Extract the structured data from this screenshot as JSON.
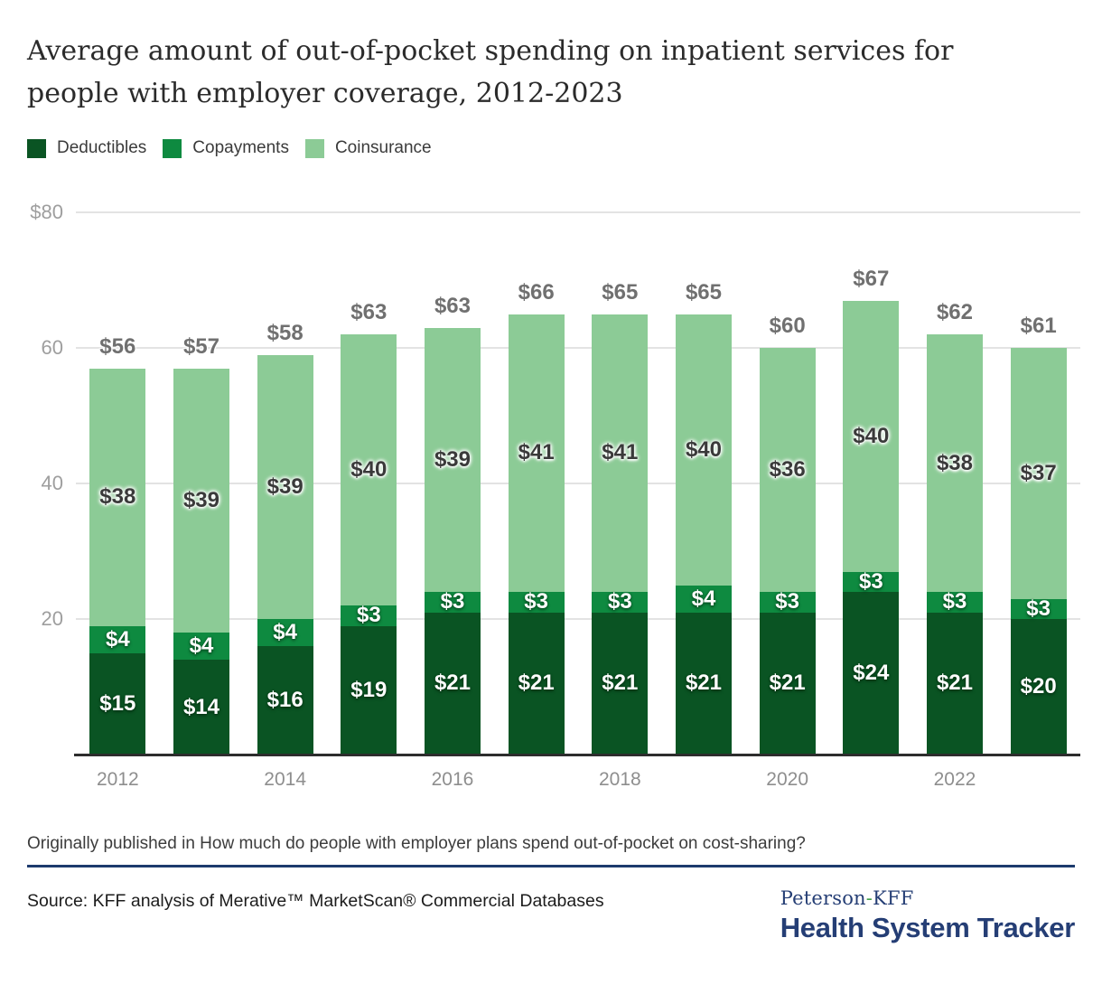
{
  "title_lines": [
    "Average amount of out-of-pocket spending on inpatient services for",
    "people with employer coverage, 2012-2023"
  ],
  "legend": [
    {
      "label": "Deductibles",
      "color": "#0a5423"
    },
    {
      "label": "Copayments",
      "color": "#0e8a40"
    },
    {
      "label": "Coinsurance",
      "color": "#8ccb96"
    }
  ],
  "chart_data": {
    "type": "bar",
    "stacked": true,
    "title": "Average amount of out-of-pocket spending on inpatient services for people with employer coverage, 2012-2023",
    "categories": [
      "2012",
      "2013",
      "2014",
      "2015",
      "2016",
      "2017",
      "2018",
      "2019",
      "2020",
      "2021",
      "2022",
      "2023"
    ],
    "x_tick_labels": [
      "2012",
      "2014",
      "2016",
      "2018",
      "2020",
      "2022"
    ],
    "series": [
      {
        "name": "Deductibles",
        "color": "#0a5423",
        "label_style": "white",
        "values": [
          15,
          14,
          16,
          19,
          21,
          21,
          21,
          21,
          21,
          24,
          21,
          20
        ]
      },
      {
        "name": "Copayments",
        "color": "#0e8a40",
        "label_style": "white",
        "values": [
          4,
          4,
          4,
          3,
          3,
          3,
          3,
          4,
          3,
          3,
          3,
          3
        ]
      },
      {
        "name": "Coinsurance",
        "color": "#8ccb96",
        "label_style": "dark",
        "values": [
          38,
          39,
          39,
          40,
          39,
          41,
          41,
          40,
          36,
          40,
          38,
          37
        ]
      }
    ],
    "totals": [
      56,
      57,
      58,
      63,
      63,
      66,
      65,
      65,
      60,
      67,
      62,
      61
    ],
    "value_prefix": "$",
    "ylim": [
      0,
      80
    ],
    "yticks": [
      {
        "value": 80,
        "label": "$80"
      },
      {
        "value": 60,
        "label": "60"
      },
      {
        "value": 40,
        "label": "40"
      },
      {
        "value": 20,
        "label": "20"
      }
    ],
    "grid": true,
    "legend_position": "top"
  },
  "footer": {
    "published_prefix": "Originally published in ",
    "published_link": "How much do people with employer plans spend out-of-pocket on cost-sharing?",
    "source": "Source: KFF analysis of Merative™ MarketScan® Commercial Databases",
    "logo_peterson": "Peterson",
    "logo_hyphen": "-",
    "logo_kff": "KFF",
    "logo_tracker": "Health System Tracker"
  }
}
